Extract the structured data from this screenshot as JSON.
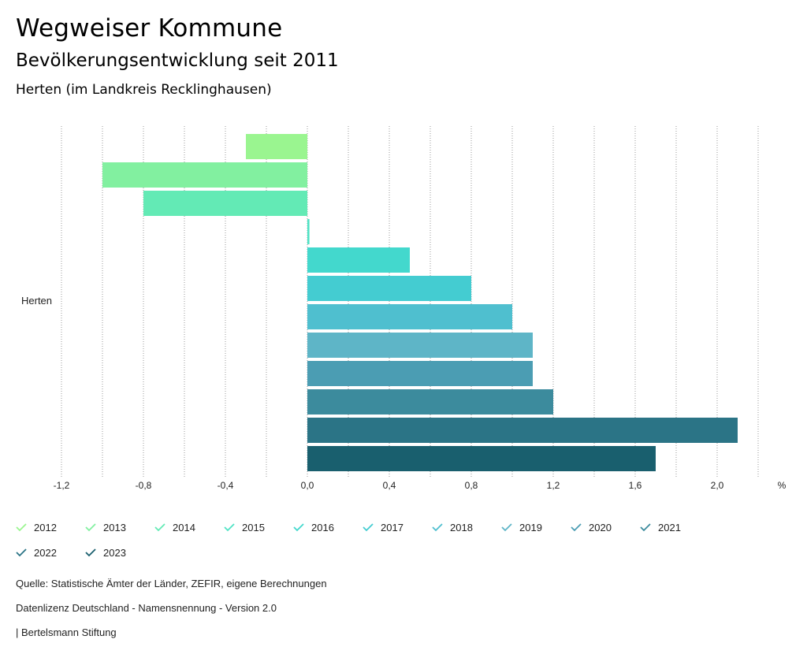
{
  "header": {
    "title": "Wegweiser Kommune",
    "subtitle": "Bevölkerungsentwicklung seit 2011",
    "region": "Herten (im Landkreis Recklinghausen)"
  },
  "chart_data": {
    "type": "bar",
    "orientation": "horizontal",
    "categories": [
      "Herten"
    ],
    "series": [
      {
        "name": "2012",
        "values": [
          -0.3
        ],
        "color": "#9af590"
      },
      {
        "name": "2013",
        "values": [
          -1.0
        ],
        "color": "#82f0a0"
      },
      {
        "name": "2014",
        "values": [
          -0.8
        ],
        "color": "#63eab5"
      },
      {
        "name": "2015",
        "values": [
          0.01
        ],
        "color": "#50e3c5"
      },
      {
        "name": "2016",
        "values": [
          0.5
        ],
        "color": "#43d8cd"
      },
      {
        "name": "2017",
        "values": [
          0.8
        ],
        "color": "#44ccd1"
      },
      {
        "name": "2018",
        "values": [
          1.0
        ],
        "color": "#4fbfcf"
      },
      {
        "name": "2019",
        "values": [
          1.1
        ],
        "color": "#5eb5c7"
      },
      {
        "name": "2020",
        "values": [
          1.1
        ],
        "color": "#4b9db3"
      },
      {
        "name": "2021",
        "values": [
          1.2
        ],
        "color": "#3c8b9d"
      },
      {
        "name": "2022",
        "values": [
          2.1
        ],
        "color": "#2b7486"
      },
      {
        "name": "2023",
        "values": [
          1.7
        ],
        "color": "#195f6e"
      }
    ],
    "xlim": [
      -1.2,
      2.2
    ],
    "xticks": [
      "-1,2",
      "-0,8",
      "-0,4",
      "0,0",
      "0,4",
      "0,8",
      "1,2",
      "1,6",
      "2,0"
    ],
    "xtick_values": [
      -1.2,
      -0.8,
      -0.4,
      0.0,
      0.4,
      0.8,
      1.2,
      1.6,
      2.0
    ],
    "unit": "%",
    "legend_position": "bottom"
  },
  "footer": {
    "source": "Quelle: Statistische Ämter der Länder, ZEFIR, eigene Berechnungen",
    "license": "Datenlizenz Deutschland - Namensnennung - Version 2.0",
    "brand": "| Bertelsmann Stiftung"
  }
}
